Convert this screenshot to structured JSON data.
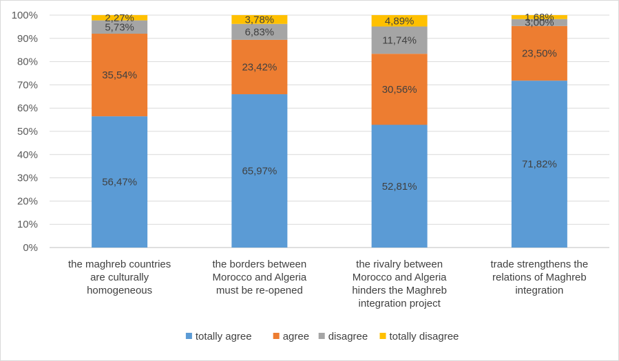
{
  "chart_data": {
    "type": "bar",
    "stacked": true,
    "percent": true,
    "ylim": [
      0,
      100
    ],
    "yticks": [
      "0%",
      "10%",
      "20%",
      "30%",
      "40%",
      "50%",
      "60%",
      "70%",
      "80%",
      "90%",
      "100%"
    ],
    "grid": true,
    "legend_position": "bottom",
    "categories": [
      [
        "the maghreb countries",
        "are culturally",
        "homogeneous"
      ],
      [
        "the borders between",
        "Morocco and Algeria",
        "must be re-opened"
      ],
      [
        "the rivalry between",
        "Morocco and Algeria",
        "hinders the Maghreb",
        "integration project"
      ],
      [
        "trade strengthens the",
        "relations of Maghreb",
        "integration"
      ]
    ],
    "series": [
      {
        "name": "totally agree",
        "color": "#5b9bd5",
        "values": [
          56.47,
          65.97,
          52.81,
          71.82
        ],
        "labels": [
          "56,47%",
          "65,97%",
          "52,81%",
          "71,82%"
        ]
      },
      {
        "name": "agree",
        "color": "#ed7d31",
        "values": [
          35.54,
          23.42,
          30.56,
          23.5
        ],
        "labels": [
          "35,54%",
          "23,42%",
          "30,56%",
          "23,50%"
        ]
      },
      {
        "name": "disagree",
        "color": "#a5a5a5",
        "values": [
          5.73,
          6.83,
          11.74,
          3.0
        ],
        "labels": [
          "5,73%",
          "6,83%",
          "11,74%",
          "3,00%"
        ]
      },
      {
        "name": "totally disagree",
        "color": "#ffc000",
        "values": [
          2.27,
          3.78,
          4.89,
          1.68
        ],
        "labels": [
          "2,27%",
          "3,78%",
          "4,89%",
          "1,68%"
        ]
      }
    ]
  }
}
